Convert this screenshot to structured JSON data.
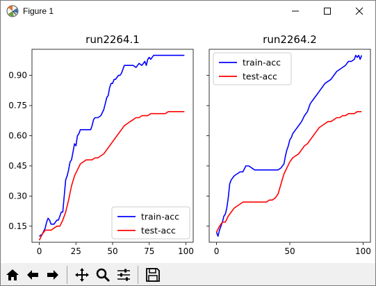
{
  "window": {
    "title": "Figure 1",
    "icons": [
      "matplotlib-logo-icon",
      "minimize-icon",
      "maximize-icon",
      "close-icon"
    ]
  },
  "toolbar": {
    "buttons": [
      {
        "name": "home-icon"
      },
      {
        "name": "back-arrow-icon"
      },
      {
        "name": "forward-arrow-icon"
      },
      {
        "name": "pan-move-icon"
      },
      {
        "name": "zoom-magnifier-icon"
      },
      {
        "name": "configure-subplots-icon"
      },
      {
        "name": "save-icon"
      }
    ]
  },
  "chart_data": [
    {
      "type": "line",
      "title": "run2264.1",
      "xlabel": "",
      "ylabel": "",
      "xlim": [
        -5,
        105
      ],
      "ylim": [
        0.07,
        1.03
      ],
      "xticks": [
        0,
        25,
        50,
        75,
        100
      ],
      "yticks": [
        0.15,
        0.3,
        0.45,
        0.6,
        0.75,
        0.9
      ],
      "ytick_labels": [
        "0.15",
        "0.30",
        "0.45",
        "0.60",
        "0.75",
        "0.90"
      ],
      "grid": false,
      "legend": "lower-right",
      "series": [
        {
          "name": "train-acc",
          "color": "#0000ff",
          "x": [
            0,
            2,
            4,
            5,
            6,
            7,
            8,
            10,
            12,
            13,
            14,
            15,
            16,
            17,
            18,
            19,
            20,
            21,
            22,
            23,
            24,
            25,
            26,
            27,
            28,
            29,
            30,
            35,
            36,
            37,
            38,
            40,
            42,
            44,
            45,
            46,
            47,
            48,
            49,
            50,
            51,
            52,
            53,
            54,
            55,
            56,
            58,
            60,
            62,
            64,
            66,
            67,
            68,
            70,
            72,
            73,
            74,
            75,
            76,
            78,
            80,
            85,
            90,
            95,
            99
          ],
          "y": [
            0.1,
            0.11,
            0.14,
            0.17,
            0.19,
            0.18,
            0.16,
            0.16,
            0.18,
            0.18,
            0.2,
            0.22,
            0.22,
            0.3,
            0.38,
            0.4,
            0.43,
            0.47,
            0.48,
            0.52,
            0.56,
            0.55,
            0.6,
            0.61,
            0.63,
            0.63,
            0.63,
            0.63,
            0.65,
            0.68,
            0.69,
            0.69,
            0.7,
            0.73,
            0.76,
            0.79,
            0.8,
            0.84,
            0.86,
            0.86,
            0.88,
            0.88,
            0.89,
            0.9,
            0.9,
            0.91,
            0.95,
            0.95,
            0.95,
            0.95,
            0.94,
            0.95,
            0.96,
            0.95,
            0.97,
            0.95,
            0.98,
            0.99,
            0.98,
            1.0,
            1.0,
            1.0,
            1.0,
            1.0,
            1.0
          ]
        },
        {
          "name": "test-acc",
          "color": "#ff0000",
          "x": [
            0,
            2,
            4,
            6,
            8,
            10,
            12,
            14,
            16,
            18,
            20,
            22,
            24,
            26,
            28,
            30,
            32,
            34,
            36,
            38,
            40,
            42,
            44,
            46,
            48,
            50,
            52,
            54,
            56,
            58,
            60,
            62,
            64,
            66,
            68,
            70,
            72,
            74,
            76,
            78,
            80,
            82,
            84,
            86,
            88,
            90,
            92,
            94,
            96,
            98,
            99
          ],
          "y": [
            0.08,
            0.11,
            0.13,
            0.13,
            0.13,
            0.14,
            0.15,
            0.15,
            0.18,
            0.22,
            0.28,
            0.35,
            0.4,
            0.43,
            0.46,
            0.47,
            0.48,
            0.48,
            0.48,
            0.49,
            0.49,
            0.5,
            0.51,
            0.53,
            0.55,
            0.57,
            0.59,
            0.61,
            0.63,
            0.65,
            0.66,
            0.67,
            0.68,
            0.69,
            0.69,
            0.7,
            0.7,
            0.7,
            0.71,
            0.71,
            0.71,
            0.71,
            0.71,
            0.71,
            0.72,
            0.72,
            0.72,
            0.72,
            0.72,
            0.72,
            0.72
          ]
        }
      ]
    },
    {
      "type": "line",
      "title": "run2264.2",
      "xlabel": "",
      "ylabel": "",
      "xlim": [
        -5,
        105
      ],
      "ylim": [
        0.07,
        1.03
      ],
      "xticks": [
        0,
        50,
        100
      ],
      "yticks": [
        0.15,
        0.3,
        0.45,
        0.6,
        0.75,
        0.9
      ],
      "ytick_labels": [
        "",
        "",
        "",
        "",
        "",
        ""
      ],
      "grid": false,
      "legend": "top-left",
      "series": [
        {
          "name": "train-acc",
          "color": "#0000ff",
          "x": [
            0,
            1,
            2,
            3,
            4,
            5,
            6,
            7,
            8,
            9,
            10,
            12,
            14,
            16,
            18,
            20,
            22,
            24,
            26,
            28,
            30,
            34,
            38,
            42,
            44,
            46,
            47,
            48,
            49,
            50,
            51,
            52,
            53,
            54,
            56,
            58,
            60,
            62,
            64,
            66,
            68,
            70,
            72,
            74,
            76,
            78,
            80,
            82,
            84,
            86,
            88,
            90,
            92,
            94,
            95,
            96,
            97,
            98,
            99
          ],
          "y": [
            0.12,
            0.1,
            0.13,
            0.15,
            0.17,
            0.2,
            0.21,
            0.24,
            0.29,
            0.36,
            0.38,
            0.4,
            0.41,
            0.42,
            0.42,
            0.45,
            0.45,
            0.44,
            0.43,
            0.43,
            0.43,
            0.43,
            0.43,
            0.43,
            0.44,
            0.46,
            0.5,
            0.53,
            0.55,
            0.58,
            0.59,
            0.61,
            0.62,
            0.63,
            0.65,
            0.67,
            0.7,
            0.72,
            0.76,
            0.78,
            0.8,
            0.82,
            0.84,
            0.86,
            0.87,
            0.88,
            0.9,
            0.92,
            0.93,
            0.94,
            0.95,
            0.97,
            0.97,
            0.98,
            1.0,
            0.99,
            1.0,
            0.98,
            1.0
          ]
        },
        {
          "name": "test-acc",
          "color": "#ff0000",
          "x": [
            0,
            2,
            4,
            6,
            8,
            10,
            12,
            14,
            16,
            18,
            20,
            22,
            24,
            26,
            28,
            30,
            32,
            34,
            36,
            38,
            40,
            42,
            44,
            46,
            48,
            50,
            52,
            54,
            56,
            58,
            60,
            62,
            64,
            66,
            68,
            70,
            72,
            74,
            76,
            78,
            80,
            82,
            84,
            86,
            88,
            90,
            92,
            94,
            96,
            98,
            99
          ],
          "y": [
            0.12,
            0.15,
            0.17,
            0.17,
            0.2,
            0.22,
            0.24,
            0.25,
            0.26,
            0.27,
            0.27,
            0.27,
            0.27,
            0.27,
            0.27,
            0.27,
            0.27,
            0.27,
            0.28,
            0.28,
            0.29,
            0.31,
            0.36,
            0.41,
            0.44,
            0.47,
            0.49,
            0.5,
            0.51,
            0.53,
            0.55,
            0.56,
            0.58,
            0.6,
            0.62,
            0.64,
            0.65,
            0.66,
            0.67,
            0.67,
            0.68,
            0.69,
            0.69,
            0.7,
            0.7,
            0.71,
            0.71,
            0.71,
            0.72,
            0.72,
            0.72
          ]
        }
      ]
    }
  ]
}
